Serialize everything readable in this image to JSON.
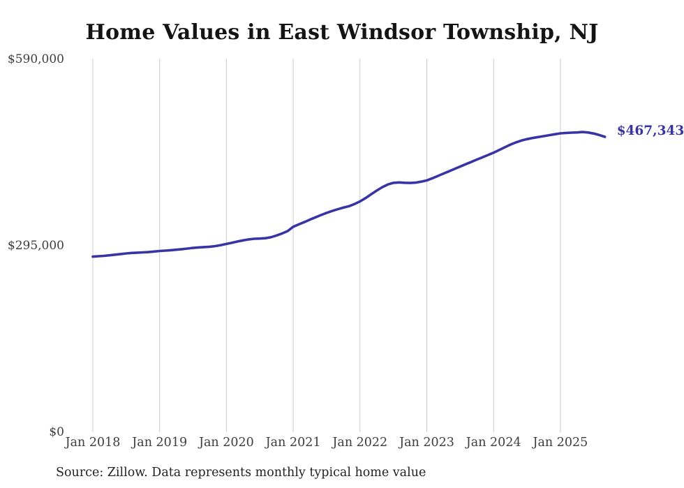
{
  "chart_data": {
    "type": "line",
    "title": "Home Values in East Windsor Township, NJ",
    "xlabel": "",
    "ylabel": "",
    "ylim": [
      0,
      590000
    ],
    "grid": "vertical-only",
    "legend": "none",
    "x_tick_labels": [
      "Jan 2018",
      "Jan 2019",
      "Jan 2020",
      "Jan 2021",
      "Jan 2022",
      "Jan 2023",
      "Jan 2024",
      "Jan 2025"
    ],
    "y_ticks": [
      {
        "label": "$0",
        "value": 0
      },
      {
        "label": "$295,000",
        "value": 295000
      },
      {
        "label": "$590,000",
        "value": 590000
      }
    ],
    "end_label": "$467,343",
    "end_value": 467343,
    "line_color": "#3834a4",
    "grid_color": "#cccccc",
    "series": [
      {
        "name": "Monthly typical home value",
        "start_month": "2018-01",
        "end_month": "2025-09",
        "values": [
          277800,
          278400,
          279000,
          279900,
          280900,
          281900,
          282900,
          283600,
          284100,
          284500,
          285000,
          285800,
          286700,
          287300,
          287900,
          288700,
          289600,
          290600,
          291600,
          292300,
          292900,
          293500,
          294400,
          296000,
          297900,
          299800,
          301700,
          303500,
          305000,
          306000,
          306400,
          306900,
          308500,
          311200,
          314500,
          318200,
          325000,
          328800,
          332500,
          336300,
          340000,
          343600,
          347000,
          350000,
          352800,
          355300,
          357500,
          361000,
          365200,
          370500,
          376400,
          382300,
          387700,
          392000,
          394500,
          395200,
          394700,
          394300,
          394900,
          396400,
          398400,
          401800,
          405500,
          409200,
          412900,
          416600,
          420300,
          424000,
          427700,
          431400,
          435000,
          438600,
          442300,
          446500,
          450800,
          455000,
          458500,
          461500,
          463700,
          465500,
          467000,
          468500,
          470000,
          471500,
          472900,
          473500,
          474000,
          474300,
          475000,
          474200,
          472500,
          470200,
          467343
        ]
      }
    ]
  },
  "source_note": "Source: Zillow. Data represents monthly typical home value"
}
